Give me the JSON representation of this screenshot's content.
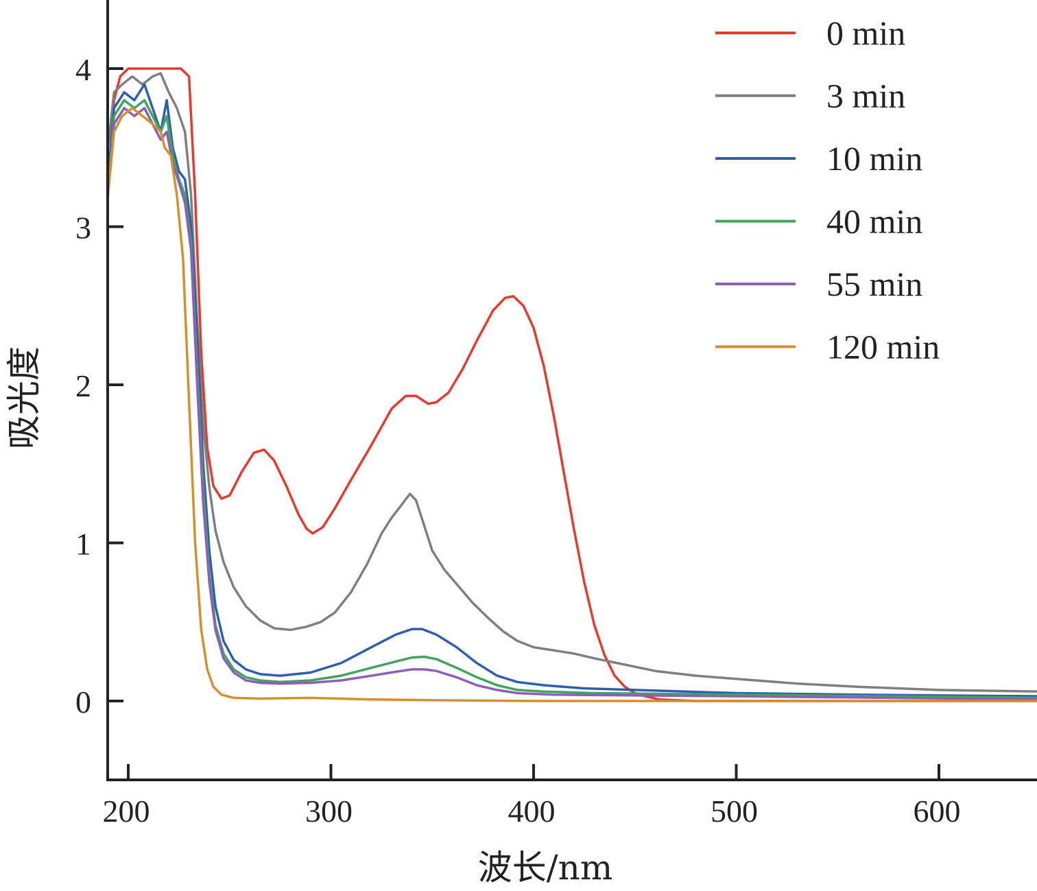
{
  "chart_data": {
    "type": "line",
    "title": "",
    "xlabel": "波长/nm",
    "ylabel": "吸光度",
    "xlim": [
      190,
      650
    ],
    "ylim": [
      -0.5,
      4.4
    ],
    "xticks": [
      200,
      300,
      400,
      500,
      600
    ],
    "yticks": [
      0,
      1,
      2,
      3,
      4
    ],
    "grid": false,
    "legend_position": "top-right",
    "series": [
      {
        "name": "0 min",
        "color": "#e8392d",
        "points": [
          [
            190,
            3.2
          ],
          [
            193,
            3.8
          ],
          [
            196,
            3.95
          ],
          [
            200,
            4.0
          ],
          [
            210,
            4.0
          ],
          [
            220,
            4.0
          ],
          [
            226,
            4.0
          ],
          [
            230,
            3.95
          ],
          [
            233,
            3.2
          ],
          [
            236,
            2.2
          ],
          [
            239,
            1.6
          ],
          [
            242,
            1.36
          ],
          [
            246,
            1.28
          ],
          [
            250,
            1.3
          ],
          [
            256,
            1.45
          ],
          [
            262,
            1.57
          ],
          [
            267,
            1.59
          ],
          [
            272,
            1.52
          ],
          [
            278,
            1.36
          ],
          [
            284,
            1.18
          ],
          [
            288,
            1.09
          ],
          [
            291,
            1.06
          ],
          [
            296,
            1.1
          ],
          [
            302,
            1.22
          ],
          [
            310,
            1.4
          ],
          [
            320,
            1.62
          ],
          [
            330,
            1.85
          ],
          [
            337,
            1.93
          ],
          [
            342,
            1.93
          ],
          [
            348,
            1.88
          ],
          [
            352,
            1.89
          ],
          [
            358,
            1.95
          ],
          [
            365,
            2.1
          ],
          [
            372,
            2.28
          ],
          [
            380,
            2.47
          ],
          [
            386,
            2.55
          ],
          [
            390,
            2.56
          ],
          [
            395,
            2.5
          ],
          [
            400,
            2.36
          ],
          [
            405,
            2.12
          ],
          [
            410,
            1.8
          ],
          [
            415,
            1.44
          ],
          [
            420,
            1.08
          ],
          [
            425,
            0.75
          ],
          [
            430,
            0.48
          ],
          [
            435,
            0.29
          ],
          [
            440,
            0.16
          ],
          [
            445,
            0.09
          ],
          [
            450,
            0.05
          ],
          [
            455,
            0.03
          ],
          [
            462,
            0.01
          ],
          [
            480,
            0.0
          ],
          [
            520,
            0.0
          ],
          [
            650,
            0.0
          ]
        ]
      },
      {
        "name": "3 min",
        "color": "#7f7f7f",
        "points": [
          [
            190,
            3.5
          ],
          [
            193,
            3.85
          ],
          [
            197,
            3.9
          ],
          [
            202,
            3.95
          ],
          [
            207,
            3.9
          ],
          [
            212,
            3.95
          ],
          [
            216,
            3.97
          ],
          [
            220,
            3.85
          ],
          [
            224,
            3.75
          ],
          [
            228,
            3.6
          ],
          [
            231,
            3.2
          ],
          [
            234,
            2.4
          ],
          [
            237,
            1.75
          ],
          [
            240,
            1.35
          ],
          [
            243,
            1.08
          ],
          [
            247,
            0.88
          ],
          [
            252,
            0.72
          ],
          [
            258,
            0.6
          ],
          [
            265,
            0.51
          ],
          [
            272,
            0.46
          ],
          [
            280,
            0.45
          ],
          [
            288,
            0.47
          ],
          [
            295,
            0.5
          ],
          [
            302,
            0.56
          ],
          [
            310,
            0.69
          ],
          [
            318,
            0.87
          ],
          [
            325,
            1.06
          ],
          [
            330,
            1.16
          ],
          [
            336,
            1.26
          ],
          [
            339,
            1.31
          ],
          [
            342,
            1.27
          ],
          [
            345,
            1.15
          ],
          [
            350,
            0.95
          ],
          [
            356,
            0.83
          ],
          [
            362,
            0.74
          ],
          [
            370,
            0.62
          ],
          [
            378,
            0.52
          ],
          [
            385,
            0.44
          ],
          [
            392,
            0.38
          ],
          [
            400,
            0.34
          ],
          [
            410,
            0.32
          ],
          [
            420,
            0.3
          ],
          [
            430,
            0.27
          ],
          [
            445,
            0.23
          ],
          [
            460,
            0.19
          ],
          [
            480,
            0.16
          ],
          [
            500,
            0.14
          ],
          [
            530,
            0.11
          ],
          [
            560,
            0.09
          ],
          [
            600,
            0.07
          ],
          [
            650,
            0.06
          ]
        ]
      },
      {
        "name": "10 min",
        "color": "#2e5fae",
        "points": [
          [
            190,
            3.3
          ],
          [
            193,
            3.75
          ],
          [
            198,
            3.85
          ],
          [
            203,
            3.8
          ],
          [
            208,
            3.9
          ],
          [
            212,
            3.75
          ],
          [
            216,
            3.6
          ],
          [
            219,
            3.8
          ],
          [
            222,
            3.5
          ],
          [
            225,
            3.35
          ],
          [
            228,
            3.3
          ],
          [
            231,
            3.0
          ],
          [
            234,
            2.3
          ],
          [
            237,
            1.5
          ],
          [
            240,
            0.95
          ],
          [
            243,
            0.6
          ],
          [
            247,
            0.38
          ],
          [
            252,
            0.26
          ],
          [
            258,
            0.2
          ],
          [
            265,
            0.17
          ],
          [
            275,
            0.16
          ],
          [
            290,
            0.18
          ],
          [
            305,
            0.24
          ],
          [
            320,
            0.34
          ],
          [
            332,
            0.42
          ],
          [
            340,
            0.455
          ],
          [
            345,
            0.455
          ],
          [
            352,
            0.42
          ],
          [
            362,
            0.34
          ],
          [
            372,
            0.24
          ],
          [
            382,
            0.16
          ],
          [
            392,
            0.12
          ],
          [
            405,
            0.1
          ],
          [
            425,
            0.08
          ],
          [
            450,
            0.07
          ],
          [
            500,
            0.05
          ],
          [
            560,
            0.04
          ],
          [
            650,
            0.03
          ]
        ]
      },
      {
        "name": "40 min",
        "color": "#3ea65a",
        "points": [
          [
            190,
            3.2
          ],
          [
            193,
            3.7
          ],
          [
            198,
            3.8
          ],
          [
            203,
            3.75
          ],
          [
            208,
            3.8
          ],
          [
            212,
            3.7
          ],
          [
            216,
            3.6
          ],
          [
            219,
            3.7
          ],
          [
            222,
            3.45
          ],
          [
            225,
            3.3
          ],
          [
            228,
            3.2
          ],
          [
            231,
            2.9
          ],
          [
            234,
            2.1
          ],
          [
            237,
            1.35
          ],
          [
            240,
            0.8
          ],
          [
            243,
            0.48
          ],
          [
            247,
            0.3
          ],
          [
            252,
            0.2
          ],
          [
            258,
            0.15
          ],
          [
            265,
            0.13
          ],
          [
            275,
            0.12
          ],
          [
            290,
            0.13
          ],
          [
            305,
            0.16
          ],
          [
            320,
            0.21
          ],
          [
            332,
            0.25
          ],
          [
            340,
            0.275
          ],
          [
            346,
            0.28
          ],
          [
            352,
            0.265
          ],
          [
            362,
            0.21
          ],
          [
            372,
            0.15
          ],
          [
            382,
            0.1
          ],
          [
            392,
            0.07
          ],
          [
            405,
            0.06
          ],
          [
            430,
            0.05
          ],
          [
            500,
            0.04
          ],
          [
            650,
            0.02
          ]
        ]
      },
      {
        "name": "55 min",
        "color": "#8e5fb8",
        "points": [
          [
            190,
            3.2
          ],
          [
            193,
            3.65
          ],
          [
            198,
            3.75
          ],
          [
            203,
            3.7
          ],
          [
            208,
            3.75
          ],
          [
            212,
            3.65
          ],
          [
            216,
            3.55
          ],
          [
            219,
            3.6
          ],
          [
            222,
            3.4
          ],
          [
            225,
            3.28
          ],
          [
            228,
            3.15
          ],
          [
            231,
            2.85
          ],
          [
            234,
            2.0
          ],
          [
            237,
            1.25
          ],
          [
            240,
            0.75
          ],
          [
            243,
            0.45
          ],
          [
            247,
            0.27
          ],
          [
            252,
            0.18
          ],
          [
            258,
            0.13
          ],
          [
            265,
            0.115
          ],
          [
            275,
            0.11
          ],
          [
            290,
            0.115
          ],
          [
            305,
            0.13
          ],
          [
            320,
            0.16
          ],
          [
            332,
            0.185
          ],
          [
            340,
            0.2
          ],
          [
            346,
            0.2
          ],
          [
            352,
            0.19
          ],
          [
            362,
            0.15
          ],
          [
            372,
            0.1
          ],
          [
            382,
            0.07
          ],
          [
            392,
            0.05
          ],
          [
            410,
            0.04
          ],
          [
            450,
            0.035
          ],
          [
            500,
            0.03
          ],
          [
            650,
            0.01
          ]
        ]
      },
      {
        "name": "120 min",
        "color": "#d4902a",
        "points": [
          [
            190,
            3.2
          ],
          [
            193,
            3.6
          ],
          [
            197,
            3.7
          ],
          [
            202,
            3.75
          ],
          [
            207,
            3.7
          ],
          [
            212,
            3.65
          ],
          [
            216,
            3.6
          ],
          [
            218,
            3.5
          ],
          [
            221,
            3.45
          ],
          [
            224,
            3.2
          ],
          [
            227,
            2.8
          ],
          [
            230,
            1.9
          ],
          [
            233,
            1.0
          ],
          [
            236,
            0.45
          ],
          [
            239,
            0.2
          ],
          [
            242,
            0.09
          ],
          [
            246,
            0.04
          ],
          [
            252,
            0.02
          ],
          [
            265,
            0.015
          ],
          [
            290,
            0.02
          ],
          [
            320,
            0.01
          ],
          [
            350,
            0.005
          ],
          [
            400,
            0.0
          ],
          [
            500,
            0.0
          ],
          [
            650,
            0.0
          ]
        ]
      }
    ]
  }
}
